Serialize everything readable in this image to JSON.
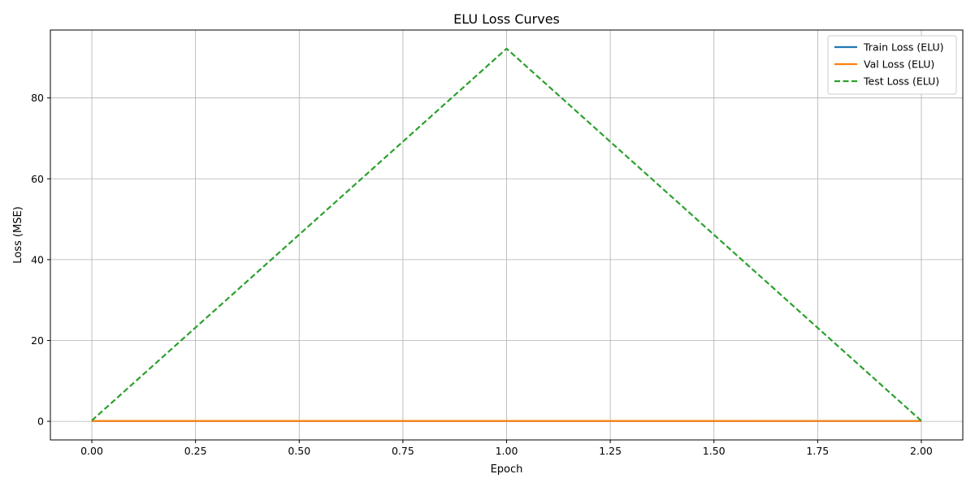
{
  "chart_data": {
    "type": "line",
    "title": "ELU Loss Curves",
    "xlabel": "Epoch",
    "ylabel": "Loss (MSE)",
    "xlim": [
      -0.1,
      2.1
    ],
    "ylim": [
      -4.6,
      96.8
    ],
    "xticks": [
      0.0,
      0.25,
      0.5,
      0.75,
      1.0,
      1.25,
      1.5,
      1.75,
      2.0
    ],
    "xtick_labels": [
      "0.00",
      "0.25",
      "0.50",
      "0.75",
      "1.00",
      "1.25",
      "1.50",
      "1.75",
      "2.00"
    ],
    "yticks": [
      0,
      20,
      40,
      60,
      80
    ],
    "ytick_labels": [
      "0",
      "20",
      "40",
      "60",
      "80"
    ],
    "grid": true,
    "legend_position": "top-right",
    "x": [
      0,
      1,
      2
    ],
    "series": [
      {
        "name": "Train Loss (ELU)",
        "values": [
          0.1,
          0.08,
          0.07
        ],
        "color": "#1f77b4",
        "style": "solid"
      },
      {
        "name": "Val Loss (ELU)",
        "values": [
          0.1,
          0.09,
          0.08
        ],
        "color": "#ff7f0e",
        "style": "solid"
      },
      {
        "name": "Test Loss (ELU)",
        "values": [
          0.2,
          92.2,
          0.1
        ],
        "color": "#2ca02c",
        "style": "dashed"
      }
    ]
  }
}
